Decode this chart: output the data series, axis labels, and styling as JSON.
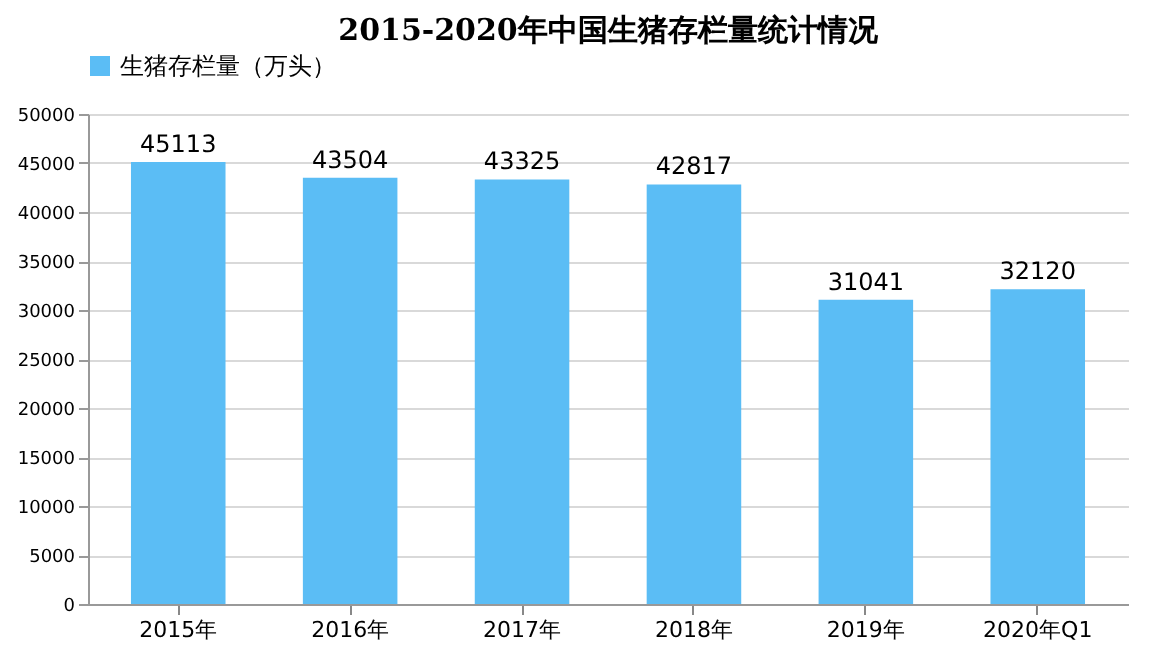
{
  "chart_data": {
    "type": "bar",
    "title": "2015-2020年中国生猪存栏量统计情况",
    "categories": [
      "2015年",
      "2016年",
      "2017年",
      "2018年",
      "2019年",
      "2020年Q1"
    ],
    "series": [
      {
        "name": "生猪存栏量（万头）",
        "color": "#5bbdf5",
        "values": [
          45113,
          43504,
          43325,
          42817,
          31041,
          32120
        ]
      }
    ],
    "ylim": [
      0,
      50000
    ],
    "yticks": [
      0,
      5000,
      10000,
      15000,
      20000,
      25000,
      30000,
      35000,
      40000,
      45000,
      50000
    ],
    "grid": "y",
    "legend": "top",
    "data_labels": true
  }
}
